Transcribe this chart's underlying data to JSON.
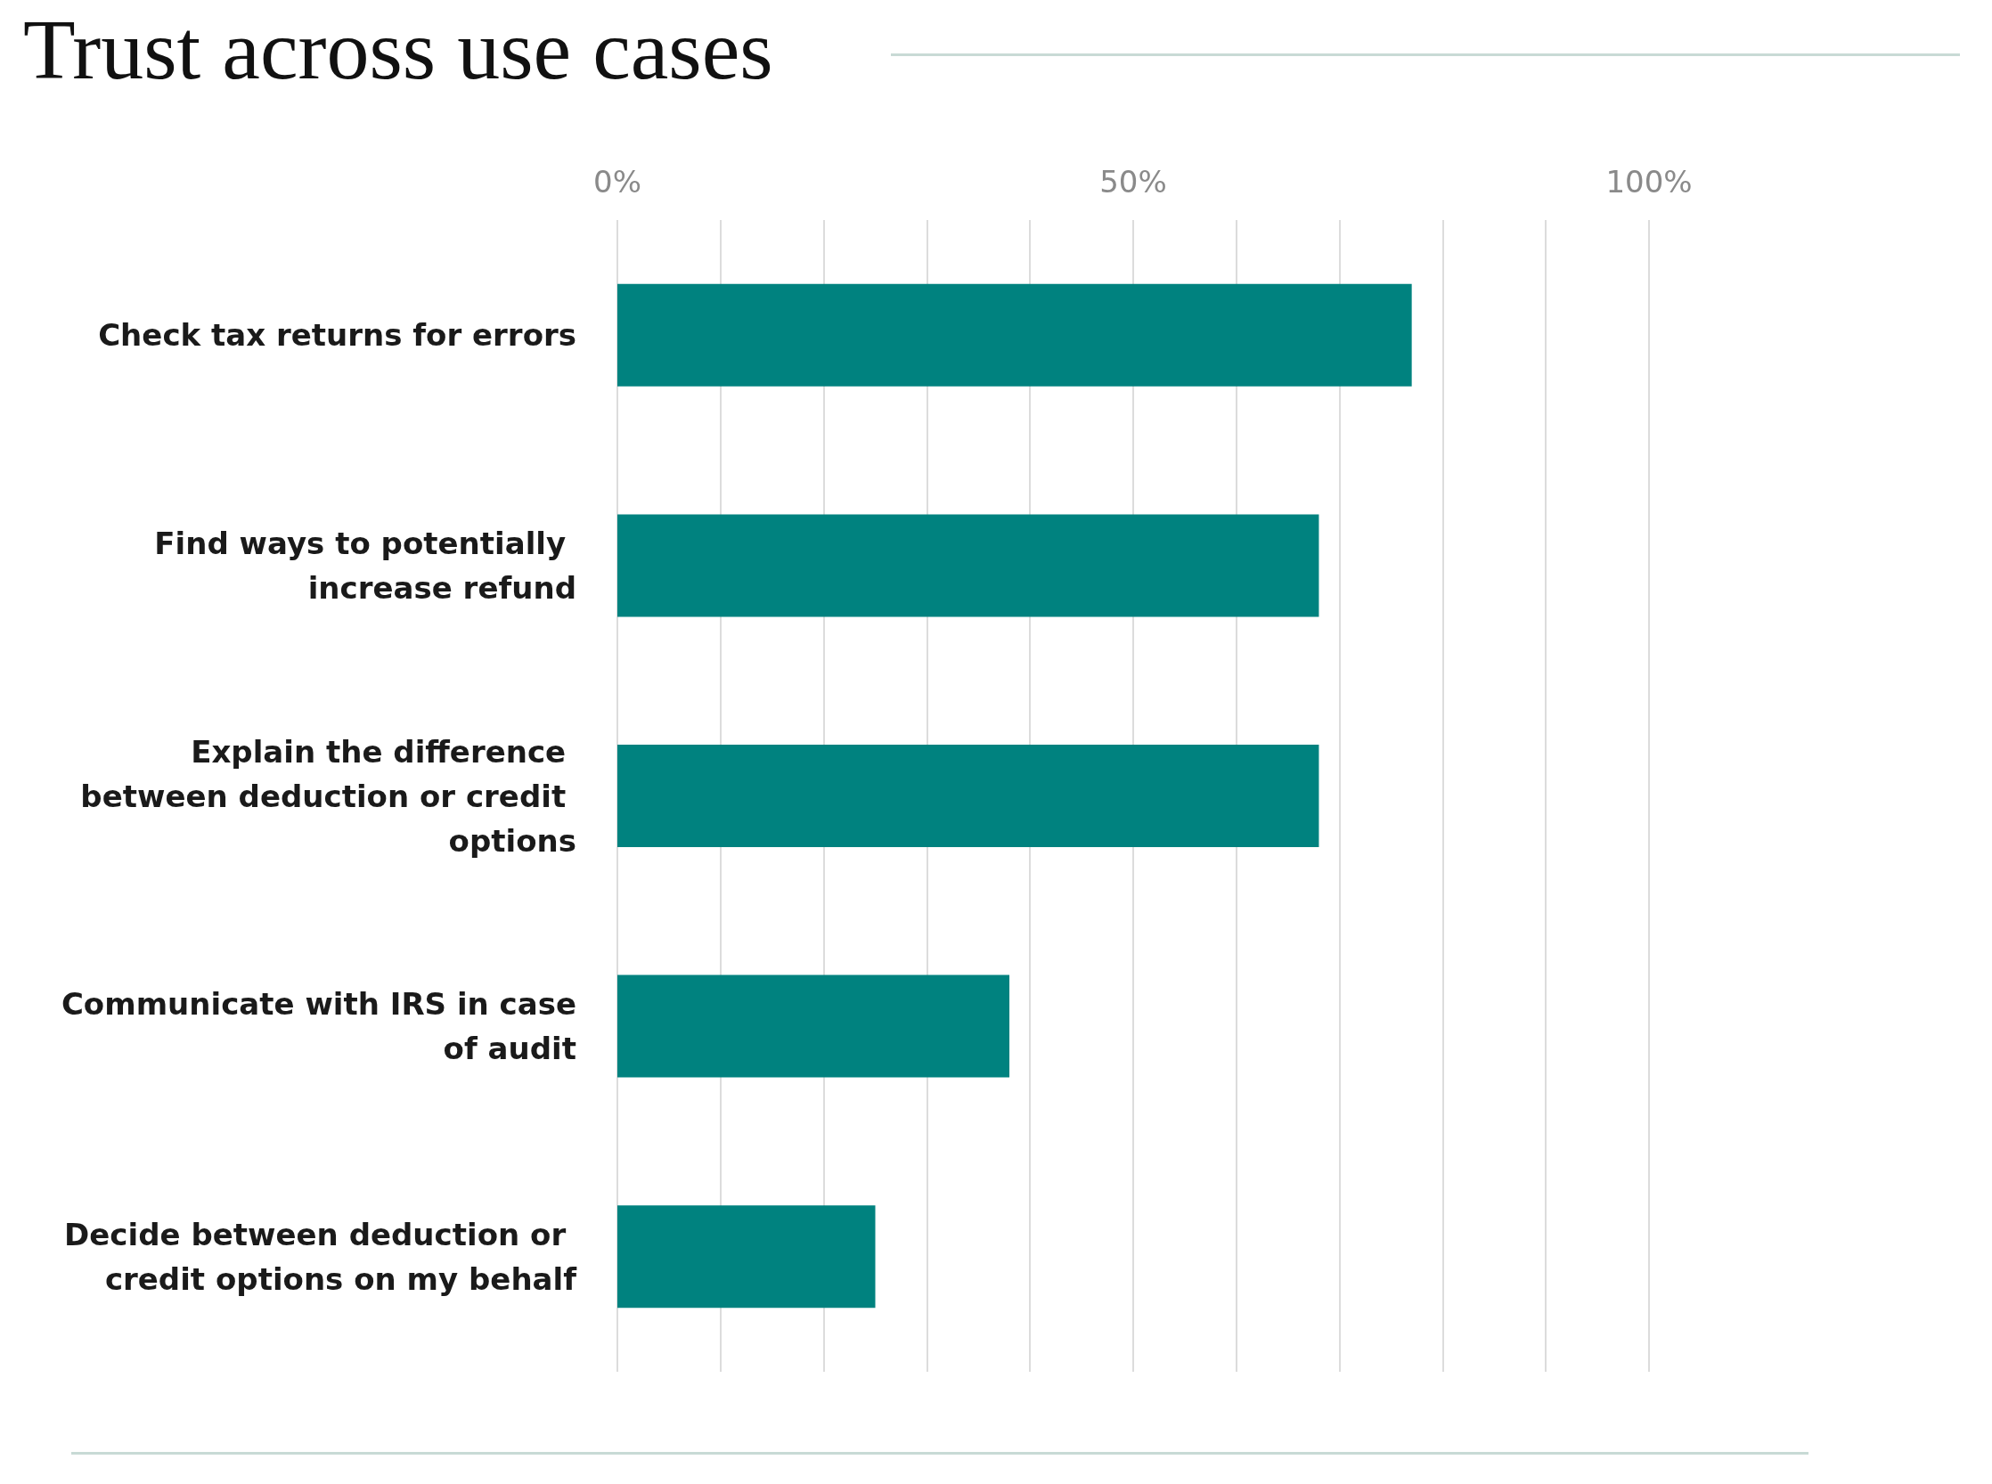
{
  "chart_data": {
    "type": "bar",
    "title": "Trust across use cases",
    "orientation": "horizontal",
    "categories": [
      "Check tax returns for errors",
      "Find ways to potentially increase refund",
      "Explain the difference between deduction or credit options",
      "Communicate with IRS in case of audit",
      "Decide between deduction or credit options on my behalf"
    ],
    "values": [
      77,
      68,
      68,
      38,
      25
    ],
    "color": "#00827f",
    "xlim": [
      0,
      100
    ],
    "xticks": [
      {
        "value": 0,
        "label": "0%"
      },
      {
        "value": 10,
        "label": null
      },
      {
        "value": 20,
        "label": null
      },
      {
        "value": 30,
        "label": null
      },
      {
        "value": 40,
        "label": null
      },
      {
        "value": 50,
        "label": "50%"
      },
      {
        "value": 60,
        "label": null
      },
      {
        "value": 70,
        "label": null
      },
      {
        "value": 80,
        "label": null
      },
      {
        "value": 90,
        "label": null
      },
      {
        "value": 100,
        "label": "100%"
      }
    ],
    "grid": "x"
  }
}
